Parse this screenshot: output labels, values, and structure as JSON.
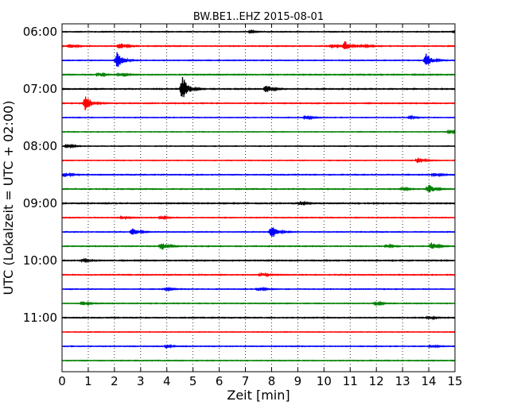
{
  "chart_data": {
    "type": "line",
    "title": "BW.BE1..EHZ 2015-08-01",
    "xlabel": "Zeit  [min]",
    "ylabel": "UTC (Lokalzeit = UTC + 02:00)",
    "xlim": [
      0,
      15
    ],
    "x_ticks": [
      "0",
      "1",
      "2",
      "3",
      "4",
      "5",
      "6",
      "7",
      "8",
      "9",
      "10",
      "11",
      "12",
      "13",
      "14",
      "15"
    ],
    "y_tick_labels": [
      "06:00",
      "07:00",
      "08:00",
      "09:00",
      "10:00",
      "11:00"
    ],
    "grid": "vertical dotted at each minute",
    "row_interval_min": 15,
    "start_time": "06:00",
    "rows": [
      {
        "start": "06:00",
        "color": "#000000",
        "noise": 0.35,
        "events": [
          {
            "t": 7.2,
            "amp": 1.2
          },
          {
            "t": 15.0,
            "amp": 2.0
          }
        ]
      },
      {
        "start": "06:15",
        "color": "#ff0000",
        "noise": 0.4,
        "events": [
          {
            "t": 0.3,
            "amp": 2.5
          },
          {
            "t": 2.2,
            "amp": 5
          },
          {
            "t": 10.8,
            "amp": 6
          },
          {
            "t": 10.3,
            "amp": 2.5
          },
          {
            "t": 11.5,
            "amp": 2
          }
        ]
      },
      {
        "start": "06:30",
        "color": "#0000ff",
        "noise": 0.35,
        "events": [
          {
            "t": 2.1,
            "amp": 11
          },
          {
            "t": 13.9,
            "amp": 9
          }
        ]
      },
      {
        "start": "06:45",
        "color": "#008000",
        "noise": 0.45,
        "events": [
          {
            "t": 1.4,
            "amp": 2.2
          },
          {
            "t": 2.2,
            "amp": 1.8
          }
        ]
      },
      {
        "start": "07:00",
        "color": "#000000",
        "noise": 0.45,
        "events": [
          {
            "t": 4.6,
            "amp": 16
          },
          {
            "t": 7.8,
            "amp": 5
          }
        ]
      },
      {
        "start": "07:15",
        "color": "#ff0000",
        "noise": 0.4,
        "events": [
          {
            "t": 0.9,
            "amp": 11
          }
        ]
      },
      {
        "start": "07:30",
        "color": "#0000ff",
        "noise": 0.3,
        "events": [
          {
            "t": 9.3,
            "amp": 2.5
          },
          {
            "t": 13.3,
            "amp": 1.5
          }
        ]
      },
      {
        "start": "07:45",
        "color": "#008000",
        "noise": 0.3,
        "events": [
          {
            "t": 14.8,
            "amp": 2.2
          }
        ]
      },
      {
        "start": "08:00",
        "color": "#000000",
        "noise": 0.3,
        "events": [
          {
            "t": 0.2,
            "amp": 2.5
          }
        ]
      },
      {
        "start": "08:15",
        "color": "#ff0000",
        "noise": 0.3,
        "events": [
          {
            "t": 13.6,
            "amp": 4
          }
        ]
      },
      {
        "start": "08:30",
        "color": "#0000ff",
        "noise": 0.4,
        "events": [
          {
            "t": 0.1,
            "amp": 3
          },
          {
            "t": 14.2,
            "amp": 2.5
          }
        ]
      },
      {
        "start": "08:45",
        "color": "#008000",
        "noise": 0.4,
        "events": [
          {
            "t": 14.0,
            "amp": 6
          },
          {
            "t": 13.0,
            "amp": 1.8
          }
        ]
      },
      {
        "start": "09:00",
        "color": "#000000",
        "noise": 0.45,
        "events": [
          {
            "t": 9.1,
            "amp": 2.5
          }
        ]
      },
      {
        "start": "09:15",
        "color": "#ff0000",
        "noise": 0.35,
        "events": [
          {
            "t": 2.3,
            "amp": 1.5
          },
          {
            "t": 3.8,
            "amp": 1.8
          }
        ]
      },
      {
        "start": "09:30",
        "color": "#0000ff",
        "noise": 0.35,
        "events": [
          {
            "t": 2.7,
            "amp": 5
          },
          {
            "t": 8.0,
            "amp": 9
          }
        ]
      },
      {
        "start": "09:45",
        "color": "#008000",
        "noise": 0.4,
        "events": [
          {
            "t": 3.8,
            "amp": 5
          },
          {
            "t": 14.1,
            "amp": 5
          },
          {
            "t": 12.4,
            "amp": 2
          }
        ]
      },
      {
        "start": "10:00",
        "color": "#000000",
        "noise": 0.45,
        "events": [
          {
            "t": 0.8,
            "amp": 1.5
          }
        ]
      },
      {
        "start": "10:15",
        "color": "#ff0000",
        "noise": 0.4,
        "events": [
          {
            "t": 7.6,
            "amp": 2.2
          }
        ]
      },
      {
        "start": "10:30",
        "color": "#0000ff",
        "noise": 0.35,
        "events": [
          {
            "t": 7.5,
            "amp": 2.5
          },
          {
            "t": 4.0,
            "amp": 1.5
          }
        ]
      },
      {
        "start": "10:45",
        "color": "#008000",
        "noise": 0.35,
        "events": [
          {
            "t": 0.8,
            "amp": 2.5
          },
          {
            "t": 12.0,
            "amp": 2.5
          }
        ]
      },
      {
        "start": "11:00",
        "color": "#000000",
        "noise": 0.4,
        "events": [
          {
            "t": 14.0,
            "amp": 1.8
          }
        ]
      },
      {
        "start": "11:15",
        "color": "#ff0000",
        "noise": 0.3,
        "events": []
      },
      {
        "start": "11:30",
        "color": "#0000ff",
        "noise": 0.35,
        "events": [
          {
            "t": 4.0,
            "amp": 1.5
          },
          {
            "t": 14.1,
            "amp": 2
          }
        ]
      },
      {
        "start": "11:45",
        "color": "#008000",
        "noise": 0.35,
        "events": []
      }
    ]
  }
}
